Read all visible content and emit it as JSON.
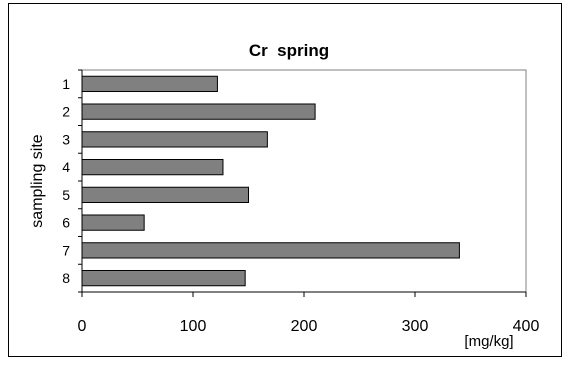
{
  "chart_data": {
    "type": "bar",
    "orientation": "horizontal",
    "title": "Cr  spring",
    "xlabel": "[mg/kg]",
    "ylabel": "sampling site",
    "categories": [
      "1",
      "2",
      "3",
      "4",
      "5",
      "6",
      "7",
      "8"
    ],
    "values": [
      122,
      210,
      167,
      127,
      150,
      56,
      340,
      147
    ],
    "xlim": [
      0,
      400
    ],
    "xticks": [
      "0",
      "100",
      "200",
      "300",
      "400"
    ],
    "grid": false,
    "legend": "none",
    "colors": {
      "bar_fill": "#808080",
      "bar_stroke": "#000000",
      "background": "#ffffff",
      "axis": "#000000"
    }
  }
}
